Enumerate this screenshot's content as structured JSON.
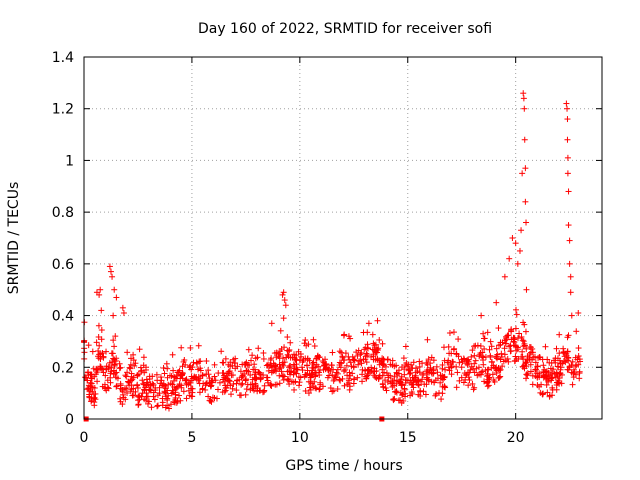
{
  "chart_data": {
    "type": "scatter",
    "title": "Day 160 of 2022, SRMTID for receiver sofi",
    "xlabel": "GPS time / hours",
    "ylabel": "SRMTID / TECUs",
    "xlim": [
      0,
      24
    ],
    "ylim": [
      0,
      1.4
    ],
    "x_ticks": [
      0,
      5,
      10,
      15,
      20
    ],
    "x_tick_labels": [
      "0",
      "5",
      "10",
      "15",
      "20"
    ],
    "y_ticks": [
      0,
      0.2,
      0.4,
      0.6,
      0.8,
      1.0,
      1.2,
      1.4
    ],
    "y_tick_labels": [
      "0",
      "0.2",
      "0.4",
      "0.6",
      "0.8",
      "1",
      "1.2",
      "1.4"
    ],
    "grid": true,
    "marker": "plus",
    "series": [
      {
        "name": "SRMTID",
        "color": "#ff0000",
        "baseline_points": [
          {
            "x": 0.0,
            "y": 0.3
          },
          {
            "x": 0.1,
            "y": 0.16
          },
          {
            "x": 0.3,
            "y": 0.14
          },
          {
            "x": 0.5,
            "y": 0.12
          },
          {
            "x": 0.7,
            "y": 0.25
          },
          {
            "x": 0.9,
            "y": 0.18
          },
          {
            "x": 1.1,
            "y": 0.15
          },
          {
            "x": 1.3,
            "y": 0.22
          },
          {
            "x": 1.5,
            "y": 0.18
          },
          {
            "x": 1.7,
            "y": 0.13
          },
          {
            "x": 1.9,
            "y": 0.12
          },
          {
            "x": 2.1,
            "y": 0.14
          },
          {
            "x": 2.3,
            "y": 0.16
          },
          {
            "x": 2.5,
            "y": 0.12
          },
          {
            "x": 2.7,
            "y": 0.15
          },
          {
            "x": 2.9,
            "y": 0.13
          },
          {
            "x": 3.1,
            "y": 0.11
          },
          {
            "x": 3.3,
            "y": 0.12
          },
          {
            "x": 3.5,
            "y": 0.1
          },
          {
            "x": 3.7,
            "y": 0.13
          },
          {
            "x": 3.9,
            "y": 0.09
          },
          {
            "x": 4.1,
            "y": 0.11
          },
          {
            "x": 4.3,
            "y": 0.12
          },
          {
            "x": 4.5,
            "y": 0.13
          },
          {
            "x": 4.7,
            "y": 0.15
          },
          {
            "x": 4.9,
            "y": 0.14
          },
          {
            "x": 5.1,
            "y": 0.16
          },
          {
            "x": 5.3,
            "y": 0.15
          },
          {
            "x": 5.5,
            "y": 0.17
          },
          {
            "x": 5.7,
            "y": 0.14
          },
          {
            "x": 5.9,
            "y": 0.13
          },
          {
            "x": 6.1,
            "y": 0.15
          },
          {
            "x": 6.3,
            "y": 0.14
          },
          {
            "x": 6.5,
            "y": 0.16
          },
          {
            "x": 6.7,
            "y": 0.15
          },
          {
            "x": 6.9,
            "y": 0.17
          },
          {
            "x": 7.1,
            "y": 0.15
          },
          {
            "x": 7.3,
            "y": 0.16
          },
          {
            "x": 7.5,
            "y": 0.15
          },
          {
            "x": 7.7,
            "y": 0.17
          },
          {
            "x": 7.9,
            "y": 0.16
          },
          {
            "x": 8.1,
            "y": 0.18
          },
          {
            "x": 8.3,
            "y": 0.17
          },
          {
            "x": 8.5,
            "y": 0.16
          },
          {
            "x": 8.7,
            "y": 0.18
          },
          {
            "x": 8.9,
            "y": 0.19
          },
          {
            "x": 9.1,
            "y": 0.2
          },
          {
            "x": 9.3,
            "y": 0.22
          },
          {
            "x": 9.5,
            "y": 0.2
          },
          {
            "x": 9.7,
            "y": 0.18
          },
          {
            "x": 9.9,
            "y": 0.19
          },
          {
            "x": 10.1,
            "y": 0.2
          },
          {
            "x": 10.3,
            "y": 0.17
          },
          {
            "x": 10.5,
            "y": 0.16
          },
          {
            "x": 10.7,
            "y": 0.18
          },
          {
            "x": 10.9,
            "y": 0.17
          },
          {
            "x": 11.1,
            "y": 0.19
          },
          {
            "x": 11.3,
            "y": 0.16
          },
          {
            "x": 11.5,
            "y": 0.17
          },
          {
            "x": 11.7,
            "y": 0.18
          },
          {
            "x": 11.9,
            "y": 0.2
          },
          {
            "x": 12.1,
            "y": 0.19
          },
          {
            "x": 12.3,
            "y": 0.18
          },
          {
            "x": 12.5,
            "y": 0.2
          },
          {
            "x": 12.7,
            "y": 0.21
          },
          {
            "x": 12.9,
            "y": 0.19
          },
          {
            "x": 13.1,
            "y": 0.22
          },
          {
            "x": 13.3,
            "y": 0.24
          },
          {
            "x": 13.5,
            "y": 0.23
          },
          {
            "x": 13.7,
            "y": 0.21
          },
          {
            "x": 13.9,
            "y": 0.18
          },
          {
            "x": 14.1,
            "y": 0.16
          },
          {
            "x": 14.3,
            "y": 0.14
          },
          {
            "x": 14.5,
            "y": 0.15
          },
          {
            "x": 14.7,
            "y": 0.13
          },
          {
            "x": 14.9,
            "y": 0.15
          },
          {
            "x": 15.1,
            "y": 0.14
          },
          {
            "x": 15.3,
            "y": 0.16
          },
          {
            "x": 15.5,
            "y": 0.15
          },
          {
            "x": 15.7,
            "y": 0.17
          },
          {
            "x": 15.9,
            "y": 0.16
          },
          {
            "x": 16.1,
            "y": 0.18
          },
          {
            "x": 16.3,
            "y": 0.15
          },
          {
            "x": 16.5,
            "y": 0.14
          },
          {
            "x": 16.7,
            "y": 0.16
          },
          {
            "x": 16.9,
            "y": 0.2
          },
          {
            "x": 17.1,
            "y": 0.22
          },
          {
            "x": 17.3,
            "y": 0.18
          },
          {
            "x": 17.5,
            "y": 0.16
          },
          {
            "x": 17.7,
            "y": 0.17
          },
          {
            "x": 17.9,
            "y": 0.19
          },
          {
            "x": 18.1,
            "y": 0.18
          },
          {
            "x": 18.3,
            "y": 0.2
          },
          {
            "x": 18.5,
            "y": 0.21
          },
          {
            "x": 18.7,
            "y": 0.19
          },
          {
            "x": 18.9,
            "y": 0.22
          },
          {
            "x": 19.1,
            "y": 0.2
          },
          {
            "x": 19.3,
            "y": 0.23
          },
          {
            "x": 19.5,
            "y": 0.25
          },
          {
            "x": 19.7,
            "y": 0.28
          },
          {
            "x": 19.9,
            "y": 0.3
          },
          {
            "x": 20.1,
            "y": 0.27
          },
          {
            "x": 20.3,
            "y": 0.26
          },
          {
            "x": 20.5,
            "y": 0.22
          },
          {
            "x": 20.7,
            "y": 0.21
          },
          {
            "x": 20.9,
            "y": 0.19
          },
          {
            "x": 21.1,
            "y": 0.17
          },
          {
            "x": 21.3,
            "y": 0.16
          },
          {
            "x": 21.5,
            "y": 0.15
          },
          {
            "x": 21.7,
            "y": 0.16
          },
          {
            "x": 21.9,
            "y": 0.18
          },
          {
            "x": 22.1,
            "y": 0.2
          },
          {
            "x": 22.3,
            "y": 0.22
          },
          {
            "x": 22.5,
            "y": 0.2
          },
          {
            "x": 22.7,
            "y": 0.19
          },
          {
            "x": 22.9,
            "y": 0.21
          }
        ],
        "peak_points": [
          {
            "x": 0.6,
            "y": 0.49
          },
          {
            "x": 0.7,
            "y": 0.48
          },
          {
            "x": 0.75,
            "y": 0.5
          },
          {
            "x": 0.8,
            "y": 0.42
          },
          {
            "x": 1.2,
            "y": 0.59
          },
          {
            "x": 1.25,
            "y": 0.57
          },
          {
            "x": 1.3,
            "y": 0.55
          },
          {
            "x": 1.35,
            "y": 0.4
          },
          {
            "x": 1.4,
            "y": 0.5
          },
          {
            "x": 1.5,
            "y": 0.47
          },
          {
            "x": 1.8,
            "y": 0.43
          },
          {
            "x": 1.85,
            "y": 0.41
          },
          {
            "x": 9.2,
            "y": 0.48
          },
          {
            "x": 9.25,
            "y": 0.49
          },
          {
            "x": 9.3,
            "y": 0.46
          },
          {
            "x": 9.35,
            "y": 0.44
          },
          {
            "x": 9.25,
            "y": 0.39
          },
          {
            "x": 8.7,
            "y": 0.37
          },
          {
            "x": 13.2,
            "y": 0.37
          },
          {
            "x": 13.6,
            "y": 0.38
          },
          {
            "x": 18.4,
            "y": 0.4
          },
          {
            "x": 19.1,
            "y": 0.45
          },
          {
            "x": 19.5,
            "y": 0.55
          },
          {
            "x": 19.7,
            "y": 0.62
          },
          {
            "x": 19.85,
            "y": 0.7
          },
          {
            "x": 20.0,
            "y": 0.68
          },
          {
            "x": 20.1,
            "y": 0.6
          },
          {
            "x": 20.2,
            "y": 0.65
          },
          {
            "x": 20.25,
            "y": 0.73
          },
          {
            "x": 20.3,
            "y": 0.95
          },
          {
            "x": 20.35,
            "y": 1.26
          },
          {
            "x": 20.38,
            "y": 1.24
          },
          {
            "x": 20.4,
            "y": 1.2
          },
          {
            "x": 20.42,
            "y": 1.08
          },
          {
            "x": 20.45,
            "y": 0.97
          },
          {
            "x": 20.45,
            "y": 0.84
          },
          {
            "x": 20.48,
            "y": 0.76
          },
          {
            "x": 20.5,
            "y": 0.5
          },
          {
            "x": 22.35,
            "y": 1.22
          },
          {
            "x": 22.38,
            "y": 1.2
          },
          {
            "x": 22.4,
            "y": 1.16
          },
          {
            "x": 22.4,
            "y": 1.08
          },
          {
            "x": 22.42,
            "y": 1.01
          },
          {
            "x": 22.42,
            "y": 0.95
          },
          {
            "x": 22.45,
            "y": 0.88
          },
          {
            "x": 22.45,
            "y": 0.75
          },
          {
            "x": 22.5,
            "y": 0.69
          },
          {
            "x": 22.5,
            "y": 0.6
          },
          {
            "x": 22.55,
            "y": 0.55
          },
          {
            "x": 22.55,
            "y": 0.49
          },
          {
            "x": 22.6,
            "y": 0.4
          },
          {
            "x": 22.9,
            "y": 0.41
          }
        ],
        "noise_seed": 160,
        "noise_points_per_hour": 55,
        "end_hour": 23
      }
    ],
    "axis_markers": [
      {
        "x": 0.1,
        "y": 0
      },
      {
        "x": 13.8,
        "y": 0
      }
    ]
  }
}
